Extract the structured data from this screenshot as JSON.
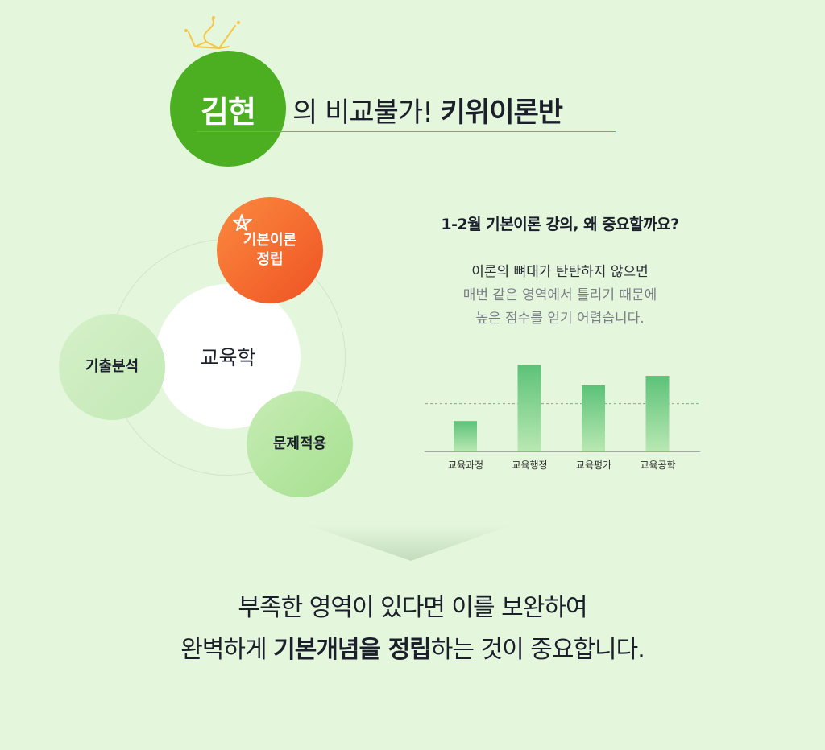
{
  "header": {
    "name": "김현",
    "title_prefix": "의 비교불가! ",
    "title_bold": "키위이론반"
  },
  "diagram": {
    "center": "교육학",
    "nodes": [
      {
        "label_lines": [
          "기본이론",
          "정립"
        ],
        "highlight": true
      },
      {
        "label_lines": [
          "기출분석"
        ]
      },
      {
        "label_lines": [
          "문제적용"
        ]
      }
    ]
  },
  "info": {
    "question": "1-2월 기본이론 강의, 왜 중요할까요?",
    "lines": [
      "이론의 뼈대가 탄탄하지 않으면",
      "매번 같은 영역에서 틀리기 때문에",
      "높은 점수를 얻기 어렵습니다."
    ]
  },
  "chart_data": {
    "type": "bar",
    "categories": [
      "교육과정",
      "교육행정",
      "교육평가",
      "교육공학"
    ],
    "values": [
      35,
      100,
      76,
      87
    ],
    "reference_line": 55,
    "ylim": [
      0,
      100
    ],
    "grid": false,
    "bar_color": "#5cc278"
  },
  "footer": {
    "line1": "부족한 영역이 있다면 이를 보완하여",
    "line2_pre": "완벽하게 ",
    "line2_bold": "기본개념을 정립",
    "line2_post": "하는 것이 중요합니다."
  },
  "colors": {
    "brand_green": "#4caf22",
    "accent_orange": "#ef5223",
    "background": "#e4f7dd"
  }
}
